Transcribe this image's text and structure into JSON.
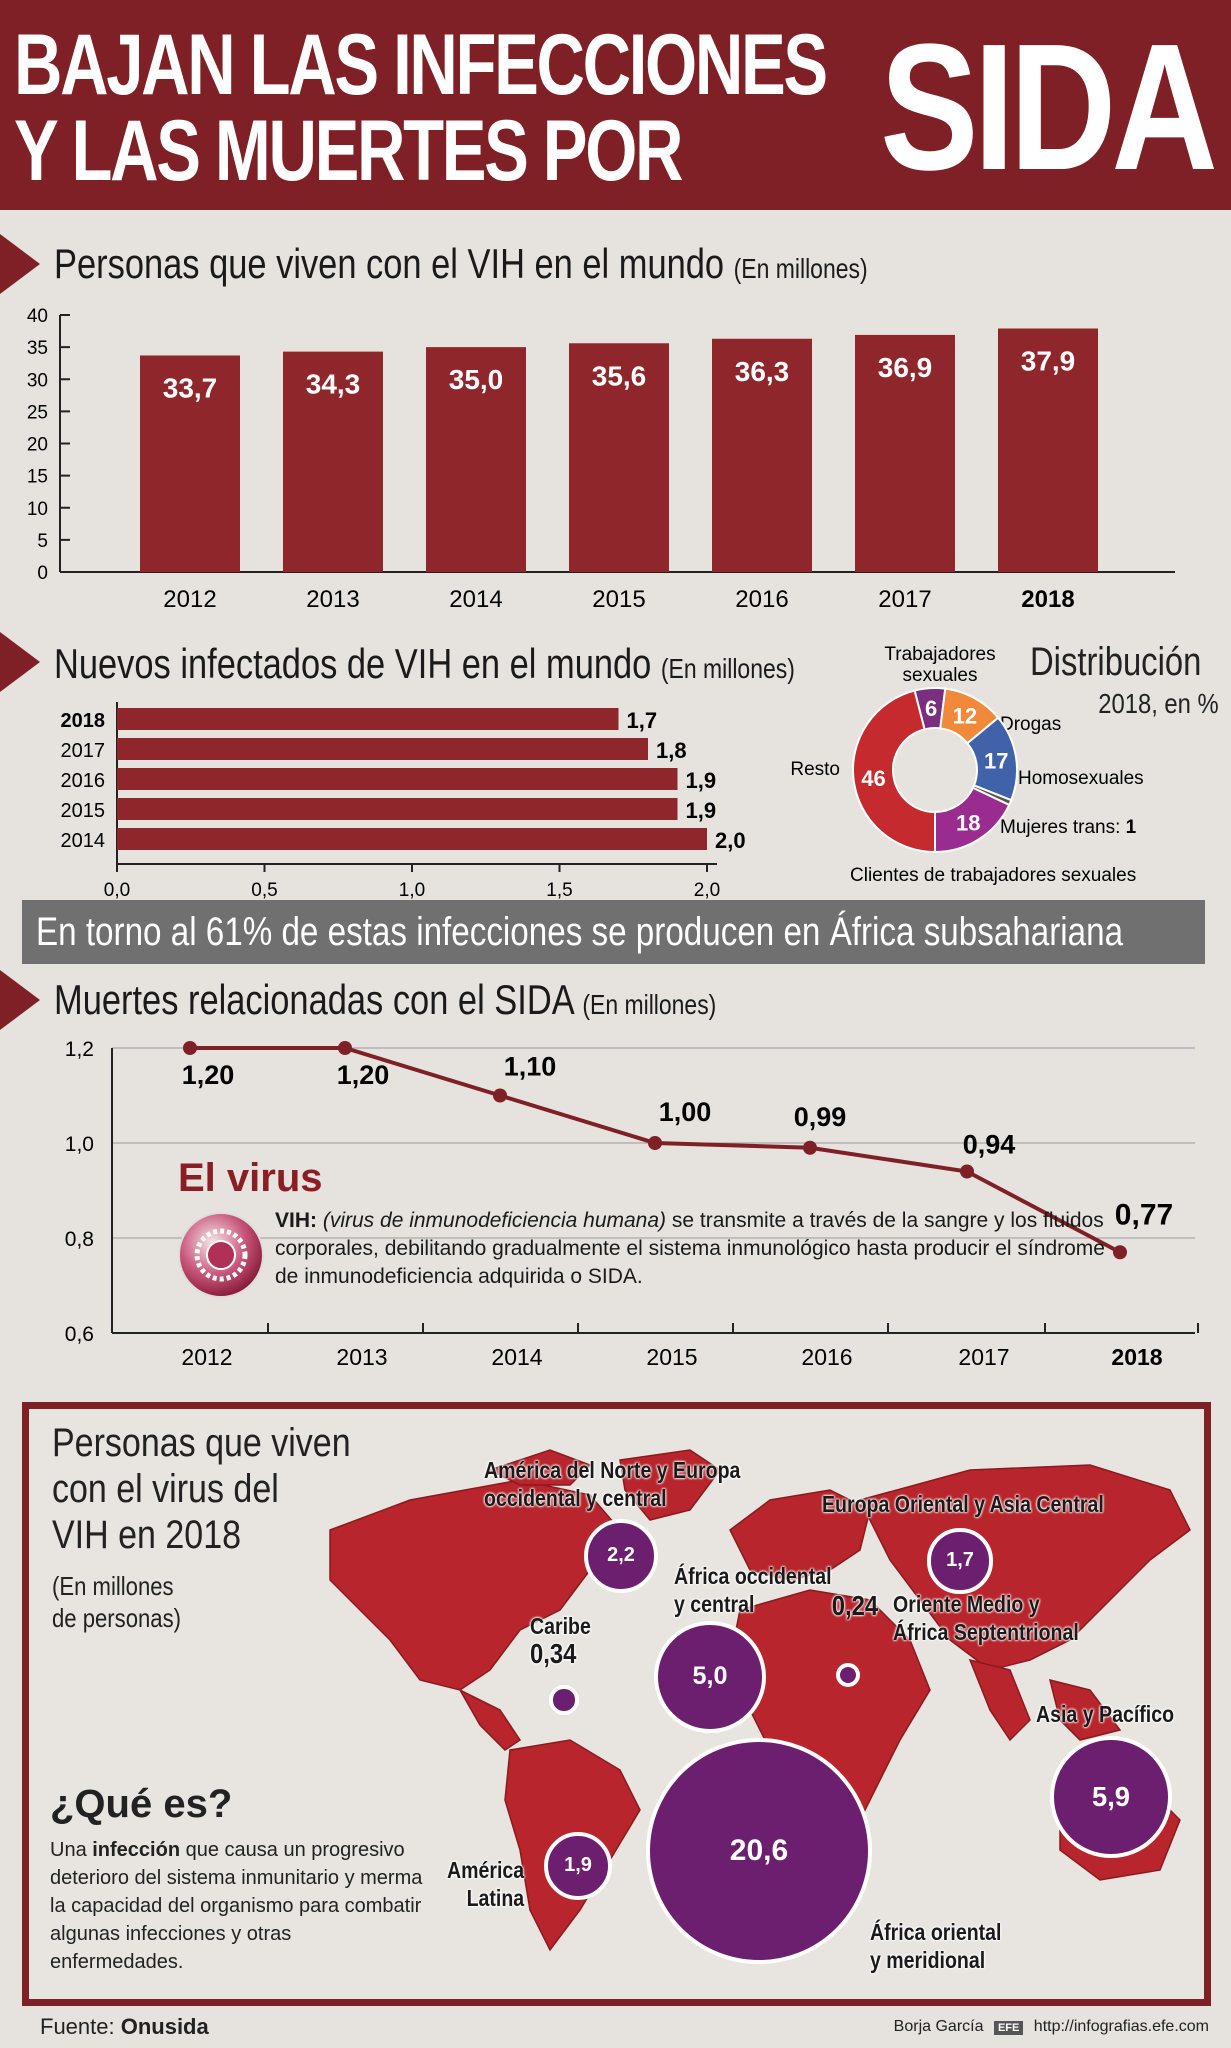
{
  "header": {
    "line1": "BAJAN LAS INFECCIONES",
    "line2": "Y LAS MUERTES POR",
    "big": "SIDA"
  },
  "section1": {
    "title": "Personas que viven con el VIH en el mundo",
    "unit": "(En millones)"
  },
  "section2": {
    "title": "Nuevos infectados de VIH en el mundo",
    "unit": "(En millones)"
  },
  "distribution": {
    "title": "Distribución",
    "subtitle": "2018, en %"
  },
  "banner": "En torno al 61% de estas infecciones se producen en África subsahariana",
  "section3": {
    "title": "Muertes relacionadas con el SIDA",
    "unit": "(En millones)"
  },
  "virus": {
    "title": "El virus",
    "lead": "VIH:",
    "italic": "(virus de inmunodeficiencia humana)",
    "text": " se transmite a través de la sangre y los fluidos corporales, debilitando gradualmente el sistema inmunológico hasta producir el síndrome de inmunodeficiencia adquirida o SIDA."
  },
  "map": {
    "title_l1": "Personas que viven",
    "title_l2": "con el virus del",
    "title_l3": "VIH en 2018",
    "sub_l1": "(En millones",
    "sub_l2": "de personas)"
  },
  "que_es": {
    "title": "¿Qué es?",
    "pre": "Una ",
    "bold": "infección",
    "text": " que causa un progresivo deterioro del sistema inmunitario y merma la capacidad del organismo para combatir algunas infecciones y otras enfermedades."
  },
  "footer": {
    "source_label": "Fuente: ",
    "source": "Onusida",
    "author": "Borja García",
    "agency": "EFE",
    "url": "http://infografias.efe.com"
  },
  "colors": {
    "brand": "#7e2025",
    "bar": "#8f262b",
    "purple": "#6b1f6e",
    "map": "#b8252c"
  },
  "chart_data": [
    {
      "type": "bar",
      "title": "Personas que viven con el VIH en el mundo",
      "ylabel": "(En millones)",
      "categories": [
        "2012",
        "2013",
        "2014",
        "2015",
        "2016",
        "2017",
        "2018"
      ],
      "values": [
        33.7,
        34.3,
        35.0,
        35.6,
        36.3,
        36.9,
        37.9
      ],
      "labels": [
        "33,7",
        "34,3",
        "35,0",
        "35,6",
        "36,3",
        "36,9",
        "37,9"
      ],
      "ylim": [
        0,
        40
      ],
      "yticks": [
        "0",
        "5",
        "10",
        "15",
        "20",
        "25",
        "30",
        "35",
        "40"
      ]
    },
    {
      "type": "bar",
      "orientation": "horizontal",
      "title": "Nuevos infectados de VIH en el mundo",
      "xlabel": "(En millones)",
      "categories": [
        "2018",
        "2017",
        "2016",
        "2015",
        "2014"
      ],
      "values": [
        1.7,
        1.8,
        1.9,
        1.9,
        2.0
      ],
      "labels": [
        "1,7",
        "1,8",
        "1,9",
        "1,9",
        "2,0"
      ],
      "xlim": [
        0,
        2.0
      ],
      "xticks": [
        "0,0",
        "0,5",
        "1,0",
        "1,5",
        "2,0"
      ]
    },
    {
      "type": "pie",
      "title": "Distribución",
      "subtitle": "2018, en %",
      "slices": [
        {
          "name": "Trabajadores sexuales",
          "value": 6,
          "color": "#7a2e7e"
        },
        {
          "name": "Drogas",
          "value": 12,
          "color": "#f08a3a"
        },
        {
          "name": "Homosexuales",
          "value": 17,
          "color": "#3f62a8"
        },
        {
          "name": "Mujeres trans:",
          "value": 1,
          "color": "#555555"
        },
        {
          "name": "Clientes de trabajadores sexuales",
          "value": 18,
          "color": "#9b2c8f"
        },
        {
          "name": "Resto",
          "value": 46,
          "color": "#c42a2e"
        }
      ]
    },
    {
      "type": "line",
      "title": "Muertes relacionadas con el SIDA",
      "ylabel": "(En millones)",
      "x": [
        "2012",
        "2013",
        "2014",
        "2015",
        "2016",
        "2017",
        "2018"
      ],
      "values": [
        1.2,
        1.2,
        1.1,
        1.0,
        0.99,
        0.94,
        0.77
      ],
      "labels": [
        "1,20",
        "1,20",
        "1,10",
        "1,00",
        "0,99",
        "0,94",
        "0,77"
      ],
      "ylim": [
        0.6,
        1.2
      ],
      "yticks": [
        "0,6",
        "0,8",
        "1,0",
        "1,2"
      ]
    },
    {
      "type": "bubble",
      "title": "Personas que viven con el virus del VIH en 2018",
      "regions": [
        {
          "name": "América del Norte y Europa occidental y central",
          "value": 2.2,
          "label": "2,2"
        },
        {
          "name": "Europa Oriental y Asia Central",
          "value": 1.7,
          "label": "1,7"
        },
        {
          "name": "Caribe",
          "value": 0.34,
          "label": "0,34"
        },
        {
          "name": "África occidental y central",
          "value": 5.0,
          "label": "5,0"
        },
        {
          "name": "Oriente Medio y África Septentrional",
          "value": 0.24,
          "label": "0,24"
        },
        {
          "name": "Asia y Pacífico",
          "value": 5.9,
          "label": "5,9"
        },
        {
          "name": "América Latina",
          "value": 1.9,
          "label": "1,9"
        },
        {
          "name": "África oriental y meridional",
          "value": 20.6,
          "label": "20,6"
        }
      ]
    }
  ]
}
